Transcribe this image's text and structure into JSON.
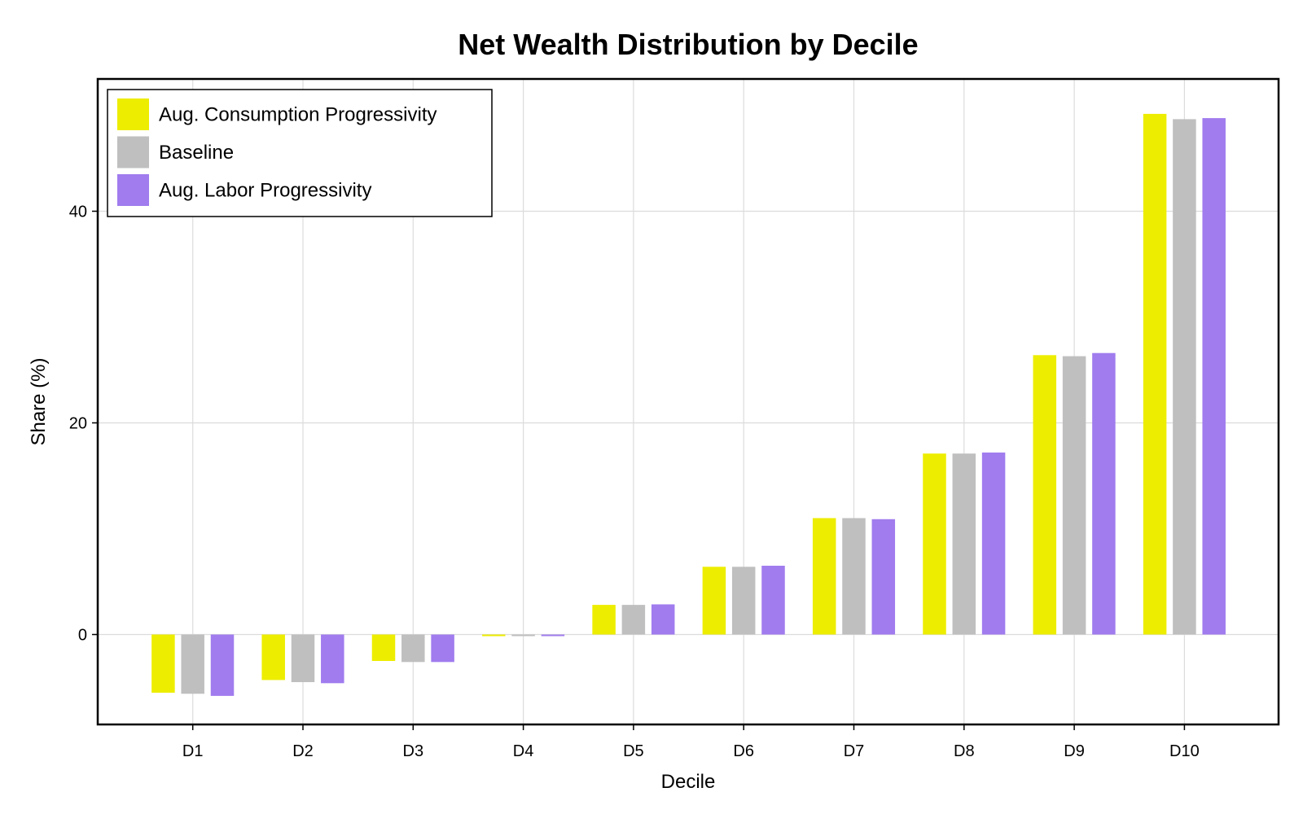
{
  "chart_data": {
    "type": "bar",
    "title": "Net Wealth Distribution by Decile",
    "xlabel": "Decile",
    "ylabel": "Share (%)",
    "categories": [
      "D1",
      "D2",
      "D3",
      "D4",
      "D5",
      "D6",
      "D7",
      "D8",
      "D9",
      "D10"
    ],
    "ylim": [
      -8.5,
      52.5
    ],
    "yticks": [
      0,
      20,
      40
    ],
    "grid": true,
    "legend_position": "top-left",
    "series": [
      {
        "name": "Aug. Consumption Progressivity",
        "color": "#eded00",
        "values": [
          -5.5,
          -4.3,
          -2.5,
          -0.15,
          2.8,
          6.4,
          11.0,
          17.1,
          26.4,
          49.2
        ]
      },
      {
        "name": "Baseline",
        "color": "#bfbfbf",
        "values": [
          -5.6,
          -4.5,
          -2.6,
          -0.15,
          2.8,
          6.4,
          11.0,
          17.1,
          26.3,
          48.7
        ]
      },
      {
        "name": "Aug. Labor Progressivity",
        "color": "#a07cee",
        "values": [
          -5.8,
          -4.6,
          -2.6,
          -0.15,
          2.85,
          6.5,
          10.9,
          17.2,
          26.6,
          48.8
        ]
      }
    ]
  }
}
